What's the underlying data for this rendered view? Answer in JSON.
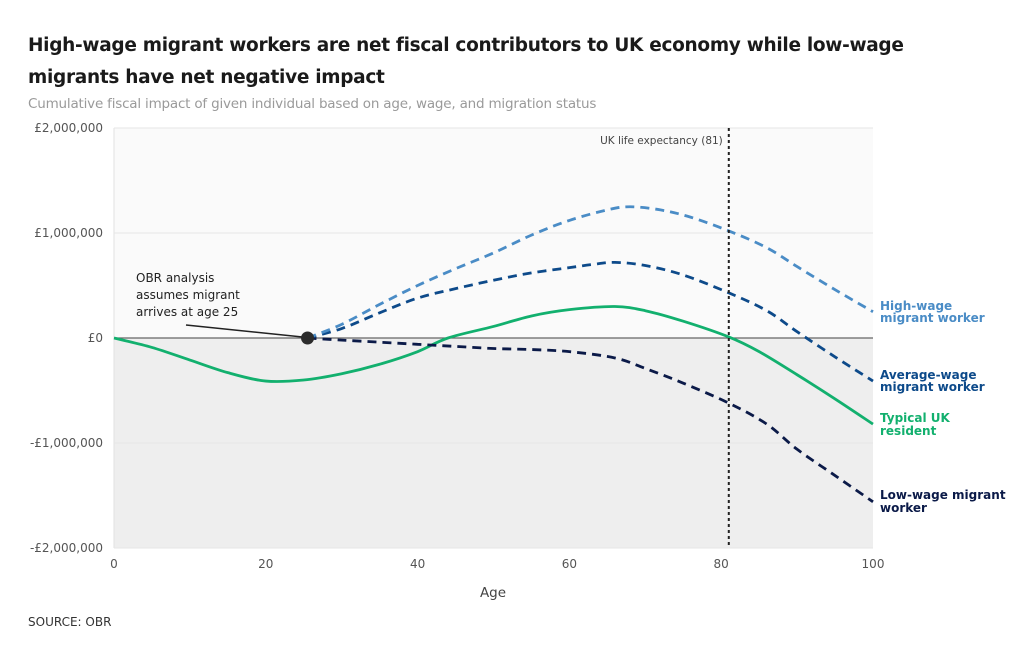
{
  "header": {
    "title": "High-wage migrant workers are net fiscal contributors to UK economy while low-wage migrants have net negative impact",
    "subtitle": "Cumulative fiscal impact of given individual based on age, wage, and migration status"
  },
  "footer": {
    "source": "SOURCE: OBR"
  },
  "chart_data": {
    "type": "line",
    "title": "High-wage migrant workers are net fiscal contributors to UK economy while low-wage migrants have net negative impact",
    "subtitle": "Cumulative fiscal impact of given individual based on age, wage, and migration status",
    "xlabel": "Age",
    "ylabel": "",
    "xlim": [
      0,
      100
    ],
    "ylim": [
      -2000000,
      2000000
    ],
    "x_ticks": [
      0,
      20,
      40,
      60,
      80,
      100
    ],
    "x_tick_labels": [
      "0",
      "20",
      "40",
      "60",
      "80",
      "100"
    ],
    "y_ticks": [
      2000000,
      1000000,
      0,
      -1000000,
      -2000000
    ],
    "y_tick_labels": [
      "£2,000,000",
      "£1,000,000",
      "£0",
      "-£1,000,000",
      "-£2,000,000"
    ],
    "grid": true,
    "legend": "right (direct labels at line ends)",
    "colors": {
      "high_wage": "#4a8cc6",
      "average_wage": "#0d4a8a",
      "typical_uk": "#12b06e",
      "low_wage": "#0b1a48",
      "positive_bg": "#fafafa",
      "negative_bg": "#eeeeee"
    },
    "series": [
      {
        "name": "High-wage migrant worker",
        "key": "high_wage",
        "style": "dashed",
        "x": [
          25.5,
          30,
          35,
          40,
          45,
          50,
          55,
          60,
          65,
          68,
          72,
          76,
          81,
          86,
          90,
          95,
          100
        ],
        "y": [
          0,
          130000,
          320000,
          500000,
          660000,
          810000,
          980000,
          1120000,
          1220000,
          1250000,
          1220000,
          1150000,
          1020000,
          860000,
          680000,
          460000,
          250000
        ]
      },
      {
        "name": "Average-wage migrant worker",
        "key": "average_wage",
        "style": "dashed",
        "x": [
          25.5,
          30,
          35,
          40,
          45,
          50,
          55,
          60,
          63,
          66,
          70,
          75,
          81,
          86,
          90,
          95,
          100
        ],
        "y": [
          0,
          90000,
          240000,
          380000,
          470000,
          550000,
          620000,
          670000,
          700000,
          720000,
          690000,
          600000,
          430000,
          260000,
          60000,
          -180000,
          -410000
        ]
      },
      {
        "name": "Typical UK resident",
        "key": "typical_uk",
        "style": "solid",
        "x": [
          0,
          5,
          10,
          15,
          20,
          25,
          30,
          35,
          40,
          44,
          50,
          55,
          60,
          66,
          70,
          75,
          81,
          85,
          90,
          95,
          100
        ],
        "y": [
          0,
          -90000,
          -210000,
          -330000,
          -410000,
          -400000,
          -340000,
          -250000,
          -130000,
          0,
          110000,
          210000,
          270000,
          300000,
          260000,
          160000,
          10000,
          -130000,
          -350000,
          -580000,
          -820000
        ]
      },
      {
        "name": "Low-wage migrant worker",
        "key": "low_wage",
        "style": "dashed",
        "x": [
          25.5,
          30,
          35,
          40,
          45,
          50,
          55,
          60,
          66,
          70,
          75,
          81,
          86,
          90,
          95,
          100
        ],
        "y": [
          0,
          -20000,
          -40000,
          -60000,
          -80000,
          -100000,
          -110000,
          -130000,
          -190000,
          -290000,
          -430000,
          -620000,
          -820000,
          -1060000,
          -1310000,
          -1560000
        ]
      }
    ],
    "annotations": [
      {
        "type": "point",
        "x": 25.5,
        "y": 0,
        "text": [
          "OBR analysis",
          "assumes migrant",
          "arrives at age 25"
        ]
      },
      {
        "type": "vline",
        "x": 81,
        "text": "UK life expectancy (81)"
      }
    ],
    "series_labels": {
      "high_wage": [
        "High-wage",
        "migrant worker"
      ],
      "average_wage": [
        "Average-wage",
        "migrant worker"
      ],
      "typical_uk": [
        "Typical UK",
        "resident"
      ],
      "low_wage": [
        "Low-wage migrant",
        "worker"
      ]
    }
  }
}
